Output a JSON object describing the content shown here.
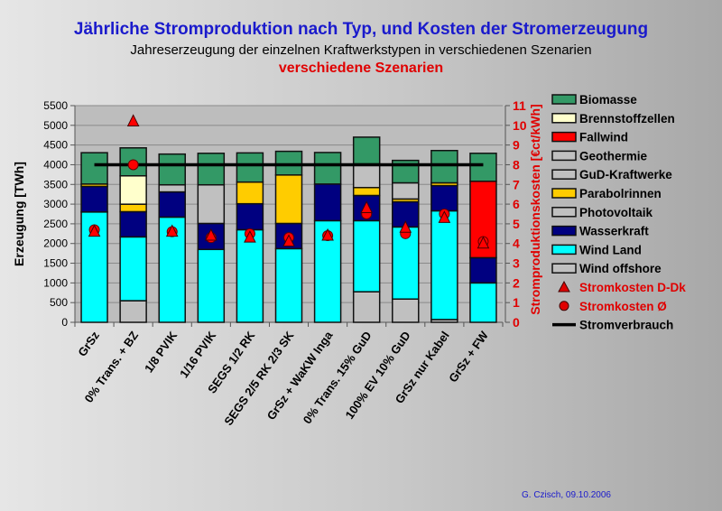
{
  "title": "Jährliche Stromproduktion nach Typ, und Kosten der Stromerzeugung",
  "subtitle": "Jahreserzeugung der einzelnen Kraftwerkstypen in verschiedenen Szenarien",
  "subtitle_overlay": "verschiedene Szenarien",
  "footer": "G. Czisch, 09.10.2006",
  "chart_data": {
    "type": "bar",
    "stacked": true,
    "ylabel": "Erzeugung [TWh]",
    "ylim": [
      0,
      5500
    ],
    "yticks": [
      0,
      500,
      1000,
      1500,
      2000,
      2500,
      3000,
      3500,
      4000,
      4500,
      5000,
      5500
    ],
    "y2label": "Stromproduktionskosten [€ct/kWh]",
    "y2lim": [
      0,
      11
    ],
    "y2ticks": [
      0,
      1,
      2,
      3,
      4,
      5,
      6,
      7,
      8,
      9,
      10,
      11
    ],
    "grid": true,
    "legend_position": "right",
    "categories": [
      "GrSz",
      "0% Trans. + BZ",
      "1/8 PVIK",
      "1/16 PVIK",
      "SEGS 1/2 RK",
      "SEGS 2/5 RK 2/3 SK",
      "GrSz + WaKW Inga",
      "0% Trans. 15% GuD",
      "100% EV 10% GuD",
      "GrSz nur Kabel",
      "GrSz + FW"
    ],
    "series": [
      {
        "name": "Wind offshore",
        "color": "#c0c0c0",
        "values": [
          0,
          548,
          0,
          0,
          0,
          0,
          0,
          775,
          590,
          70,
          0
        ]
      },
      {
        "name": "Wind Land",
        "color": "#00ffff",
        "values": [
          2800,
          1620,
          2670,
          1850,
          2350,
          1870,
          2580,
          1805,
          1830,
          2760,
          1000
        ]
      },
      {
        "name": "Wasserkraft",
        "color": "#000080",
        "values": [
          650,
          640,
          640,
          660,
          660,
          640,
          930,
          640,
          640,
          640,
          640
        ]
      },
      {
        "name": "Photovoltaik",
        "color": "#c0c0c0",
        "values": [
          0,
          0,
          180,
          980,
          0,
          0,
          0,
          0,
          0,
          0,
          0
        ]
      },
      {
        "name": "Parabolrinnen",
        "color": "#ffcc00",
        "values": [
          60,
          190,
          0,
          0,
          550,
          1230,
          0,
          200,
          70,
          70,
          0
        ]
      },
      {
        "name": "GuD-Kraftwerke",
        "color": "#c0c0c0",
        "values": [
          0,
          0,
          0,
          0,
          0,
          0,
          0,
          600,
          410,
          0,
          0
        ]
      },
      {
        "name": "Geothermie",
        "color": "#c0c0c0",
        "values": [
          0,
          0,
          0,
          0,
          0,
          0,
          0,
          0,
          0,
          0,
          0
        ]
      },
      {
        "name": "Fallwind",
        "color": "#ff0000",
        "values": [
          0,
          0,
          0,
          0,
          0,
          0,
          0,
          0,
          0,
          0,
          1940
        ]
      },
      {
        "name": "Brennstoffzellen",
        "color": "#ffffcc",
        "values": [
          0,
          720,
          0,
          0,
          0,
          0,
          0,
          0,
          0,
          0,
          0
        ]
      },
      {
        "name": "Biomasse",
        "color": "#339966",
        "values": [
          795,
          710,
          780,
          800,
          740,
          600,
          800,
          680,
          570,
          820,
          710
        ]
      }
    ],
    "cost_series": [
      {
        "name": "Stromkosten D-Dk",
        "marker": "triangle",
        "color": "#ff0000",
        "axis": "right",
        "values": [
          4.6,
          10.2,
          4.6,
          4.4,
          4.3,
          4.1,
          4.4,
          5.8,
          4.8,
          5.3,
          4.0
        ]
      },
      {
        "name": "Stromkosten Ø",
        "marker": "circle",
        "color": "#ff0000",
        "axis": "right",
        "values": [
          4.7,
          8.0,
          4.6,
          4.3,
          4.5,
          4.3,
          4.4,
          5.5,
          4.5,
          5.5,
          4.1
        ]
      }
    ],
    "line_series": {
      "name": "Stromverbrauch",
      "color": "#000000",
      "value": 4000
    },
    "legend_order": [
      "Biomasse",
      "Brennstoffzellen",
      "Fallwind",
      "Geothermie",
      "GuD-Kraftwerke",
      "Parabolrinnen",
      "Photovoltaik",
      "Wasserkraft",
      "Wind Land",
      "Wind offshore",
      "Stromkosten D-Dk",
      "Stromkosten Ø",
      "Stromverbrauch"
    ]
  }
}
